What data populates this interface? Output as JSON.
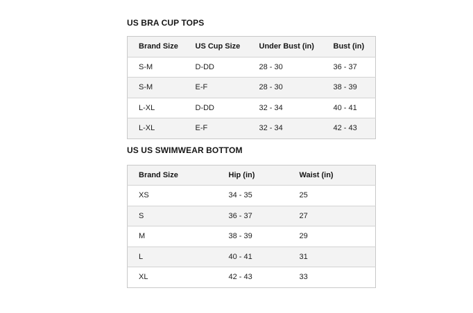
{
  "page": {
    "background": "#ffffff",
    "text_color": "#161616",
    "border_color": "#c8c8c8",
    "header_bg": "#f3f3f3",
    "stripe_bg": "#f3f3f3"
  },
  "tables": [
    {
      "title": "US BRA CUP TOPS",
      "columns": [
        "Brand Size",
        "US Cup Size",
        "Under Bust (in)",
        "Bust (in)"
      ],
      "rows": [
        [
          "S-M",
          "D-DD",
          "28 - 30",
          "36 - 37"
        ],
        [
          "S-M",
          "E-F",
          "28 - 30",
          "38 - 39"
        ],
        [
          "L-XL",
          "D-DD",
          "32 - 34",
          "40 - 41"
        ],
        [
          "L-XL",
          "E-F",
          "32 - 34",
          "42 - 43"
        ]
      ]
    },
    {
      "title": "US US SWIMWEAR BOTTOM",
      "columns": [
        "Brand Size",
        "Hip (in)",
        "Waist (in)"
      ],
      "rows": [
        [
          "XS",
          "34 - 35",
          "25"
        ],
        [
          "S",
          "36 - 37",
          "27"
        ],
        [
          "M",
          "38 - 39",
          "29"
        ],
        [
          "L",
          "40 - 41",
          "31"
        ],
        [
          "XL",
          "42 - 43",
          "33"
        ]
      ]
    }
  ]
}
